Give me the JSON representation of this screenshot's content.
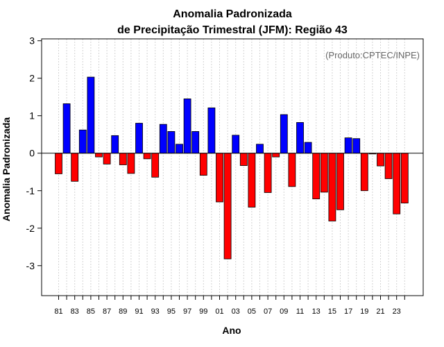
{
  "chart_data": {
    "type": "bar",
    "title": "Anomalia Padronizada",
    "subtitle": "de Precipitação Trimestral (JFM): Região 43",
    "xlabel": "Ano",
    "ylabel": "Anomalia Padronizada",
    "annotation": "(Produto:CPTEC/INPE)",
    "ylim": [
      -3.8,
      3.05
    ],
    "yticks": [
      "-3",
      "-2",
      "-1",
      "0",
      "1",
      "2",
      "3"
    ],
    "categories": [
      "81",
      "82",
      "83",
      "84",
      "85",
      "86",
      "87",
      "88",
      "89",
      "90",
      "91",
      "92",
      "93",
      "94",
      "95",
      "96",
      "97",
      "98",
      "99",
      "00",
      "01",
      "02",
      "03",
      "04",
      "05",
      "06",
      "07",
      "08",
      "09",
      "10",
      "11",
      "12",
      "13",
      "14",
      "15",
      "16",
      "17",
      "18",
      "19",
      "20",
      "21",
      "22",
      "23",
      "24"
    ],
    "xtick_labels": [
      "81",
      "83",
      "85",
      "87",
      "89",
      "91",
      "93",
      "95",
      "97",
      "99",
      "01",
      "03",
      "05",
      "07",
      "09",
      "11",
      "13",
      "15",
      "17",
      "19",
      "21",
      "23"
    ],
    "values": [
      -0.55,
      1.32,
      -0.75,
      0.62,
      2.03,
      -0.1,
      -0.29,
      0.47,
      -0.31,
      -0.54,
      0.8,
      -0.15,
      -0.64,
      0.77,
      0.58,
      0.24,
      1.45,
      0.58,
      -0.59,
      1.21,
      -1.3,
      -2.82,
      0.48,
      -0.33,
      -1.44,
      0.24,
      -1.05,
      -0.1,
      1.03,
      -0.89,
      0.82,
      0.29,
      -1.22,
      -1.04,
      -1.81,
      -1.51,
      0.41,
      0.39,
      -1.0,
      -0.02,
      -0.34,
      -0.68,
      -1.62,
      -1.33
    ],
    "grid": true,
    "colors": {
      "positive": "#0000ff",
      "negative": "#ff0000",
      "grid": "#d3d3d3",
      "zero_line": "#000000"
    }
  }
}
